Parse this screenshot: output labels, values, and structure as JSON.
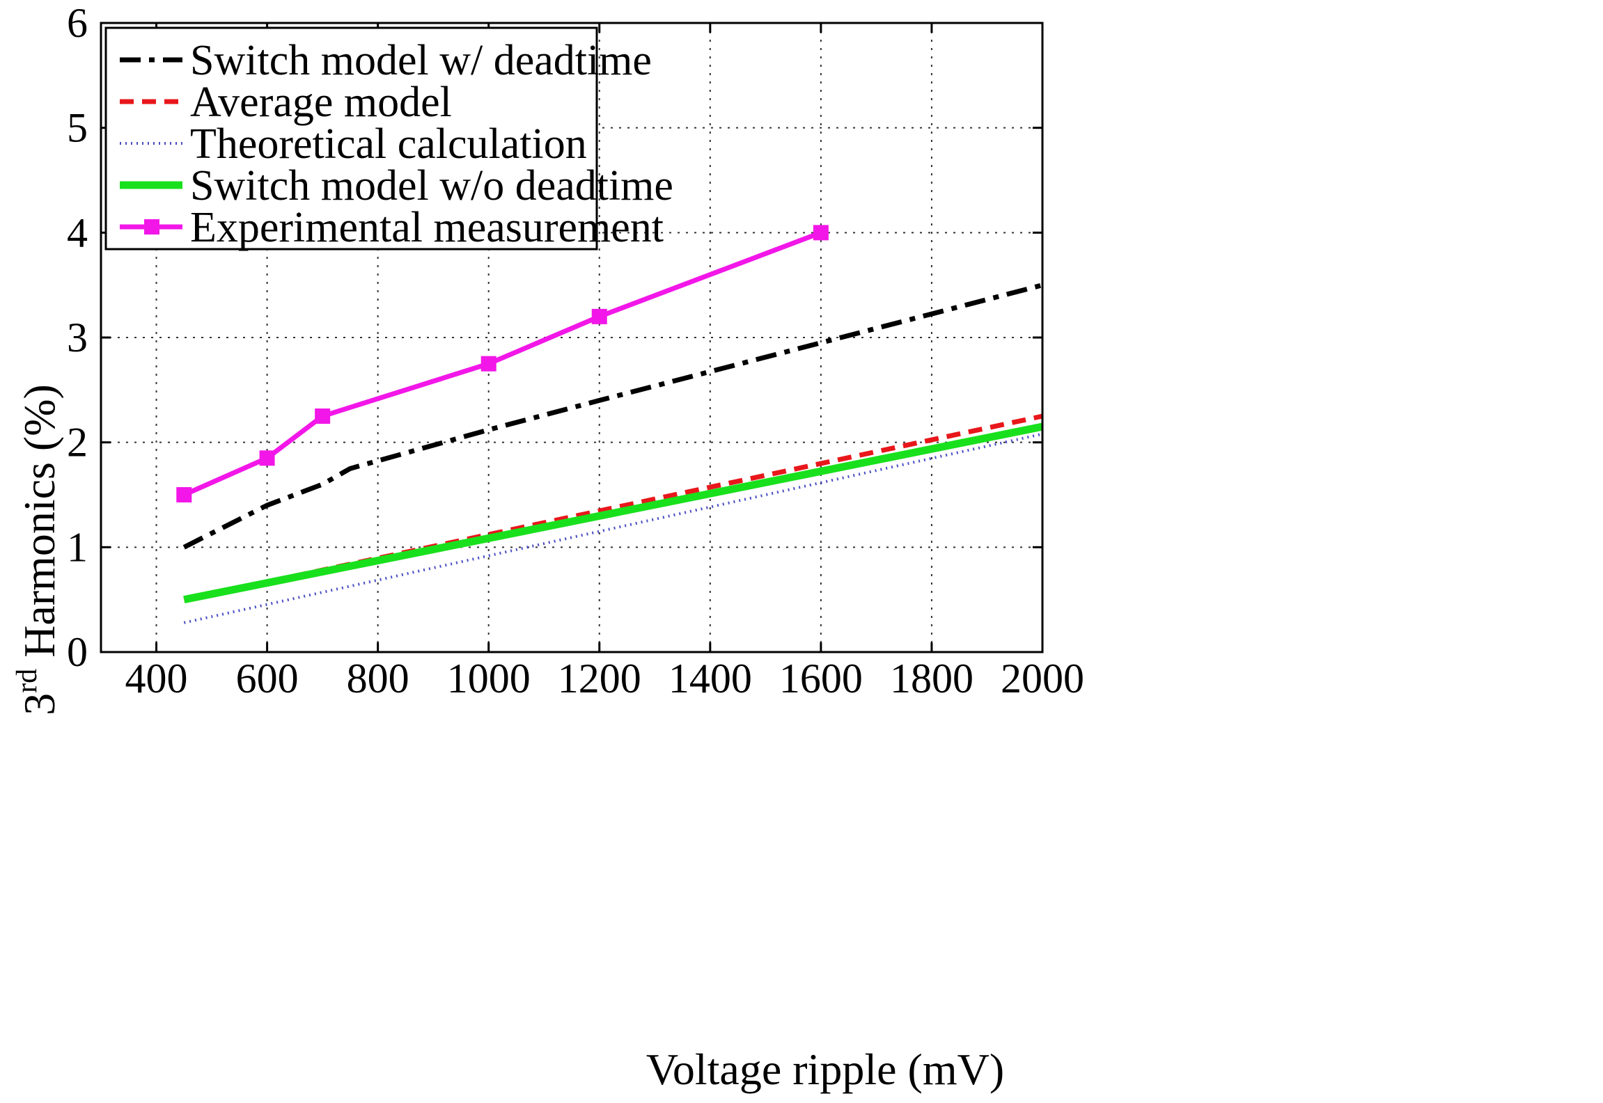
{
  "chart_data": {
    "type": "line",
    "title": "",
    "xlabel": "Voltage ripple (mV)",
    "ylabel": {
      "prefix": "3",
      "superscript": "rd",
      "suffix": " Harmonics (%)"
    },
    "xlim": [
      300,
      2000
    ],
    "ylim": [
      0,
      6
    ],
    "xticks": [
      400,
      600,
      800,
      1000,
      1200,
      1400,
      1600,
      1800,
      2000
    ],
    "yticks": [
      0,
      1,
      2,
      3,
      4,
      5,
      6
    ],
    "grid": true,
    "legend_position": "top-left",
    "series": [
      {
        "name": "Switch model w/ deadtime",
        "color": "#000000",
        "style": "dashdot",
        "x": [
          450,
          600,
          700,
          750,
          1000,
          1200,
          1600,
          2000
        ],
        "y": [
          1.0,
          1.4,
          1.6,
          1.75,
          2.12,
          2.4,
          2.95,
          3.5
        ]
      },
      {
        "name": "Average model",
        "color": "#e8171b",
        "style": "dashed",
        "x": [
          450,
          2000
        ],
        "y": [
          0.5,
          2.25
        ]
      },
      {
        "name": "Theoretical calculation",
        "color": "#4a4fc4",
        "style": "dotted",
        "x": [
          450,
          2000
        ],
        "y": [
          0.28,
          2.08
        ]
      },
      {
        "name": "Switch model w/o deadtime",
        "color": "#19e01d",
        "style": "solid",
        "x": [
          450,
          2000
        ],
        "y": [
          0.5,
          2.15
        ]
      },
      {
        "name": "Experimental measurement",
        "color": "#f217e8",
        "style": "solid-square",
        "x": [
          450,
          600,
          700,
          1000,
          1200,
          1600
        ],
        "y": [
          1.5,
          1.85,
          2.25,
          2.75,
          3.2,
          4.0
        ]
      }
    ]
  }
}
